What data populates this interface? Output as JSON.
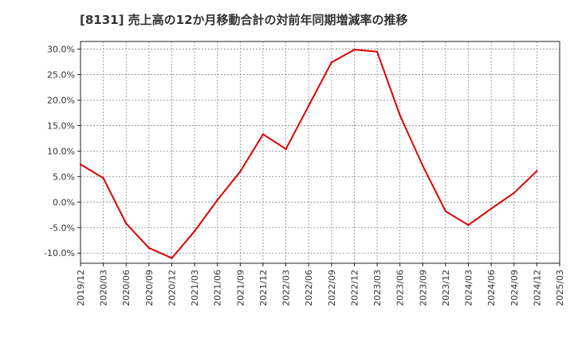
{
  "chart_data": {
    "type": "line",
    "title": "[8131]  売上高の12か月移動合計の対前年同期増減率の推移",
    "xlabel": "",
    "ylabel": "",
    "x": [
      "2019/12",
      "2020/03",
      "2020/06",
      "2020/09",
      "2020/12",
      "2021/03",
      "2021/06",
      "2021/09",
      "2021/12",
      "2022/03",
      "2022/06",
      "2022/09",
      "2022/12",
      "2023/03",
      "2023/06",
      "2023/09",
      "2023/12",
      "2024/03",
      "2024/06",
      "2024/09",
      "2024/12",
      "2025/03"
    ],
    "y_ticks": [
      "30.0%",
      "25.0%",
      "20.0%",
      "15.0%",
      "10.0%",
      "5.0%",
      "0.0%",
      "-5.0%",
      "-10.0%"
    ],
    "y_tick_values": [
      30,
      25,
      20,
      15,
      10,
      5,
      0,
      -5,
      -10
    ],
    "ylim": [
      -12,
      31.5
    ],
    "grid": true,
    "series": [
      {
        "name": "対前年同期増減率",
        "color": "#dd0000",
        "values": [
          7.4,
          4.7,
          -4.2,
          -9.0,
          -11.0,
          -5.7,
          0.4,
          6.0,
          13.3,
          10.4,
          18.9,
          27.4,
          29.9,
          29.5,
          17.0,
          7.1,
          -1.8,
          -4.5,
          -1.3,
          1.8,
          6.1,
          null
        ]
      }
    ]
  }
}
